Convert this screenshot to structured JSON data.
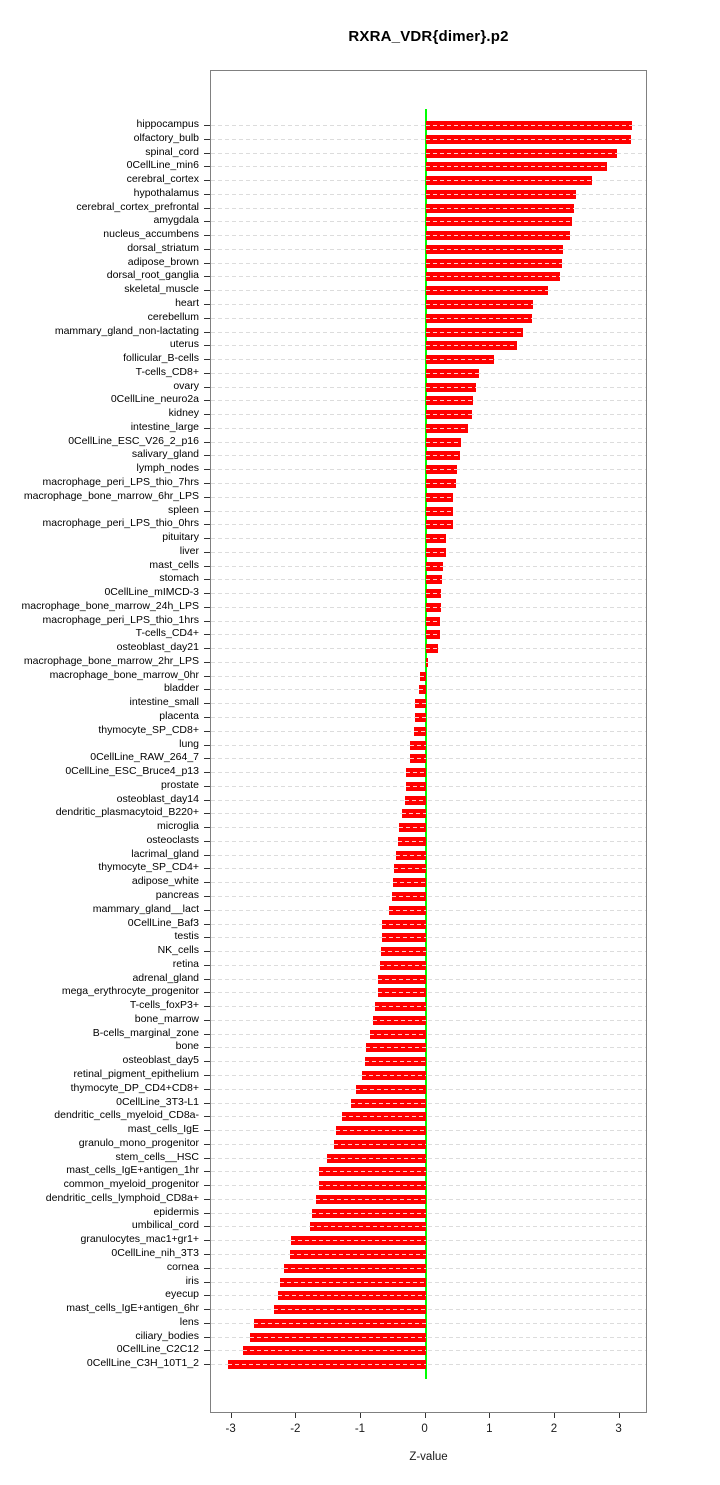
{
  "title": "RXRA_VDR{dimer}.p2",
  "chart_data": {
    "type": "bar",
    "orientation": "horizontal",
    "title": "RXRA_VDR{dimer}.p2",
    "xlabel": "Z-value",
    "xlim": [
      -3.32,
      3.44
    ],
    "x_ticks": [
      -3,
      -2,
      -1,
      0,
      1,
      2,
      3
    ],
    "grid": "dotted-row-lines",
    "zero_line": 0,
    "bar_color": "#ff0000",
    "zero_line_color": "#00ff00",
    "gridline_color": "#dcdcdc",
    "frame_color": "#808080",
    "categories": [
      "hippocampus",
      "olfactory_bulb",
      "spinal_cord",
      "0CellLine_min6",
      "cerebral_cortex",
      "hypothalamus",
      "cerebral_cortex_prefrontal",
      "amygdala",
      "nucleus_accumbens",
      "dorsal_striatum",
      "adipose_brown",
      "dorsal_root_ganglia",
      "skeletal_muscle",
      "heart",
      "cerebellum",
      "mammary_gland_non-lactating",
      "uterus",
      "follicular_B-cells",
      "T-cells_CD8+",
      "ovary",
      "0CellLine_neuro2a",
      "kidney",
      "intestine_large",
      "0CellLine_ESC_V26_2_p16",
      "salivary_gland",
      "lymph_nodes",
      "macrophage_peri_LPS_thio_7hrs",
      "macrophage_bone_marrow_6hr_LPS",
      "spleen",
      "macrophage_peri_LPS_thio_0hrs",
      "pituitary",
      "liver",
      "mast_cells",
      "stomach",
      "0CellLine_mIMCD-3",
      "macrophage_bone_marrow_24h_LPS",
      "macrophage_peri_LPS_thio_1hrs",
      "T-cells_CD4+",
      "osteoblast_day21",
      "macrophage_bone_marrow_2hr_LPS",
      "macrophage_bone_marrow_0hr",
      "bladder",
      "intestine_small",
      "placenta",
      "thymocyte_SP_CD8+",
      "lung",
      "0CellLine_RAW_264_7",
      "0CellLine_ESC_Bruce4_p13",
      "prostate",
      "osteoblast_day14",
      "dendritic_plasmacytoid_B220+",
      "microglia",
      "osteoclasts",
      "lacrimal_gland",
      "thymocyte_SP_CD4+",
      "adipose_white",
      "pancreas",
      "mammary_gland__lact",
      "0CellLine_Baf3",
      "testis",
      "NK_cells",
      "retina",
      "adrenal_gland",
      "mega_erythrocyte_progenitor",
      "T-cells_foxP3+",
      "bone_marrow",
      "B-cells_marginal_zone",
      "bone",
      "osteoblast_day5",
      "retinal_pigment_epithelium",
      "thymocyte_DP_CD4+CD8+",
      "0CellLine_3T3-L1",
      "dendritic_cells_myeloid_CD8a-",
      "mast_cells_IgE",
      "granulo_mono_progenitor",
      "stem_cells__HSC",
      "mast_cells_IgE+antigen_1hr",
      "common_myeloid_progenitor",
      "dendritic_cells_lymphoid_CD8a+",
      "epidermis",
      "umbilical_cord",
      "granulocytes_mac1+gr1+",
      "0CellLine_nih_3T3",
      "cornea",
      "iris",
      "eyecup",
      "mast_cells_IgE+antigen_6hr",
      "lens",
      "ciliary_bodies",
      "0CellLine_C2C12",
      "0CellLine_C3H_10T1_2"
    ],
    "values": [
      3.19,
      3.18,
      2.96,
      2.81,
      2.57,
      2.32,
      2.3,
      2.27,
      2.23,
      2.13,
      2.11,
      2.08,
      1.89,
      1.66,
      1.64,
      1.51,
      1.42,
      1.06,
      0.83,
      0.78,
      0.74,
      0.71,
      0.65,
      0.55,
      0.53,
      0.48,
      0.47,
      0.43,
      0.43,
      0.43,
      0.32,
      0.32,
      0.27,
      0.26,
      0.24,
      0.24,
      0.23,
      0.22,
      0.19,
      0.03,
      -0.08,
      -0.11,
      -0.16,
      -0.16,
      -0.18,
      -0.24,
      -0.24,
      -0.3,
      -0.31,
      -0.32,
      -0.36,
      -0.41,
      -0.43,
      -0.46,
      -0.49,
      -0.5,
      -0.52,
      -0.56,
      -0.68,
      -0.68,
      -0.69,
      -0.71,
      -0.73,
      -0.74,
      -0.78,
      -0.82,
      -0.86,
      -0.93,
      -0.94,
      -0.98,
      -1.08,
      -1.16,
      -1.29,
      -1.38,
      -1.41,
      -1.53,
      -1.65,
      -1.65,
      -1.69,
      -1.76,
      -1.79,
      -2.09,
      -2.1,
      -2.19,
      -2.26,
      -2.29,
      -2.35,
      -2.66,
      -2.71,
      -2.83,
      -3.05
    ]
  }
}
